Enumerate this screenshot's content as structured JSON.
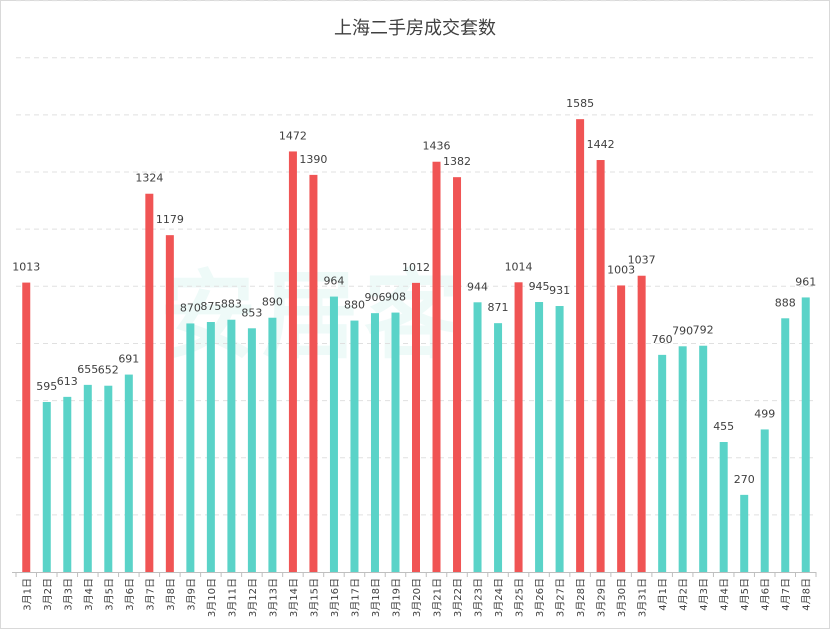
{
  "chart_data": {
    "type": "bar",
    "title": "上海二手房成交套数",
    "xlabel": "",
    "ylabel": "",
    "ylim": [
      0,
      2000
    ],
    "grid": true,
    "watermark": "安居客",
    "colors": {
      "high": "#f05454",
      "normal": "#5ad3c8"
    },
    "categories": [
      "3月1日",
      "3月2日",
      "3月3日",
      "3月4日",
      "3月5日",
      "3月6日",
      "3月7日",
      "3月8日",
      "3月9日",
      "3月10日",
      "3月11日",
      "3月12日",
      "3月13日",
      "3月14日",
      "3月15日",
      "3月16日",
      "3月17日",
      "3月18日",
      "3月19日",
      "3月20日",
      "3月21日",
      "3月22日",
      "3月23日",
      "3月24日",
      "3月25日",
      "3月26日",
      "3月27日",
      "3月28日",
      "3月29日",
      "3月30日",
      "3月31日",
      "4月1日",
      "4月2日",
      "4月3日",
      "4月4日",
      "4月5日",
      "4月6日",
      "4月7日",
      "4月8日"
    ],
    "values": [
      1013,
      595,
      613,
      655,
      652,
      691,
      1324,
      1179,
      870,
      875,
      883,
      853,
      890,
      1472,
      1390,
      964,
      880,
      906,
      908,
      1012,
      1436,
      1382,
      944,
      871,
      1014,
      945,
      931,
      1585,
      1442,
      1003,
      1037,
      760,
      790,
      792,
      455,
      270,
      499,
      888,
      961
    ],
    "highlight": [
      true,
      false,
      false,
      false,
      false,
      false,
      true,
      true,
      false,
      false,
      false,
      false,
      false,
      true,
      true,
      false,
      false,
      false,
      false,
      true,
      true,
      true,
      false,
      false,
      true,
      false,
      false,
      true,
      true,
      true,
      true,
      false,
      false,
      false,
      false,
      false,
      false,
      false,
      false
    ]
  }
}
